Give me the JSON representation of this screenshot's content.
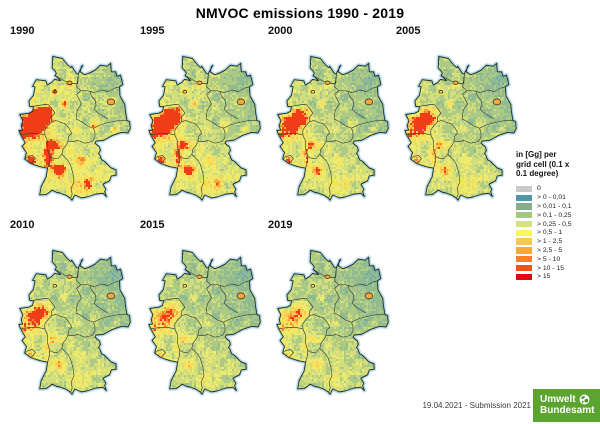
{
  "title": "NMVOC emissions 1990 - 2019",
  "maps": [
    {
      "year": "1990",
      "relative_intensity": 1.0
    },
    {
      "year": "1995",
      "relative_intensity": 0.8
    },
    {
      "year": "2000",
      "relative_intensity": 0.62
    },
    {
      "year": "2005",
      "relative_intensity": 0.55
    },
    {
      "year": "2010",
      "relative_intensity": 0.47
    },
    {
      "year": "2015",
      "relative_intensity": 0.4
    },
    {
      "year": "2019",
      "relative_intensity": 0.36
    }
  ],
  "legend": {
    "title_lines": [
      "in [Gg] per",
      "grid cell (0.1 x",
      "0.1 degree)"
    ],
    "entries": [
      {
        "label": "0",
        "color": "#c9c9c9"
      },
      {
        "label": "> 0 - 0,01",
        "color": "#4f98a8"
      },
      {
        "label": "> 0,01 - 0,1",
        "color": "#86ad8e"
      },
      {
        "label": "> 0,1 - 0,25",
        "color": "#a3c97e"
      },
      {
        "label": "> 0,25 - 0,5",
        "color": "#d3e283"
      },
      {
        "label": "> 0,5 - 1",
        "color": "#fbf55f"
      },
      {
        "label": "> 1 - 2,5",
        "color": "#fbc653"
      },
      {
        "label": "> 2,5 - 5",
        "color": "#faa63f"
      },
      {
        "label": "> 5 - 10",
        "color": "#f8812d"
      },
      {
        "label": "> 10 - 15",
        "color": "#f1511b"
      },
      {
        "label": "> 15",
        "color": "#e30613"
      }
    ]
  },
  "footer": {
    "date_note": "19.04.2021 - Submission 2021"
  },
  "logo": {
    "line1": "Umwelt",
    "line2": "Bundesamt",
    "bg_color": "#5ba42f"
  }
}
